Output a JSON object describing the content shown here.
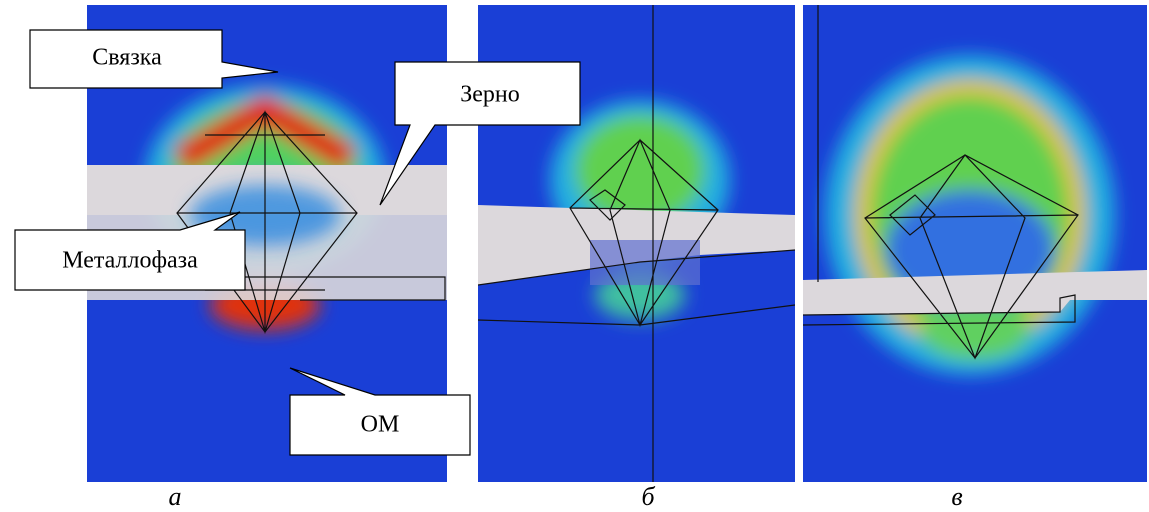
{
  "callouts": {
    "binder": "Связка",
    "grain": "Зерно",
    "metal_phase": "Металлофаза",
    "workpiece": "ОМ"
  },
  "captions": [
    "а",
    "б",
    "в"
  ]
}
